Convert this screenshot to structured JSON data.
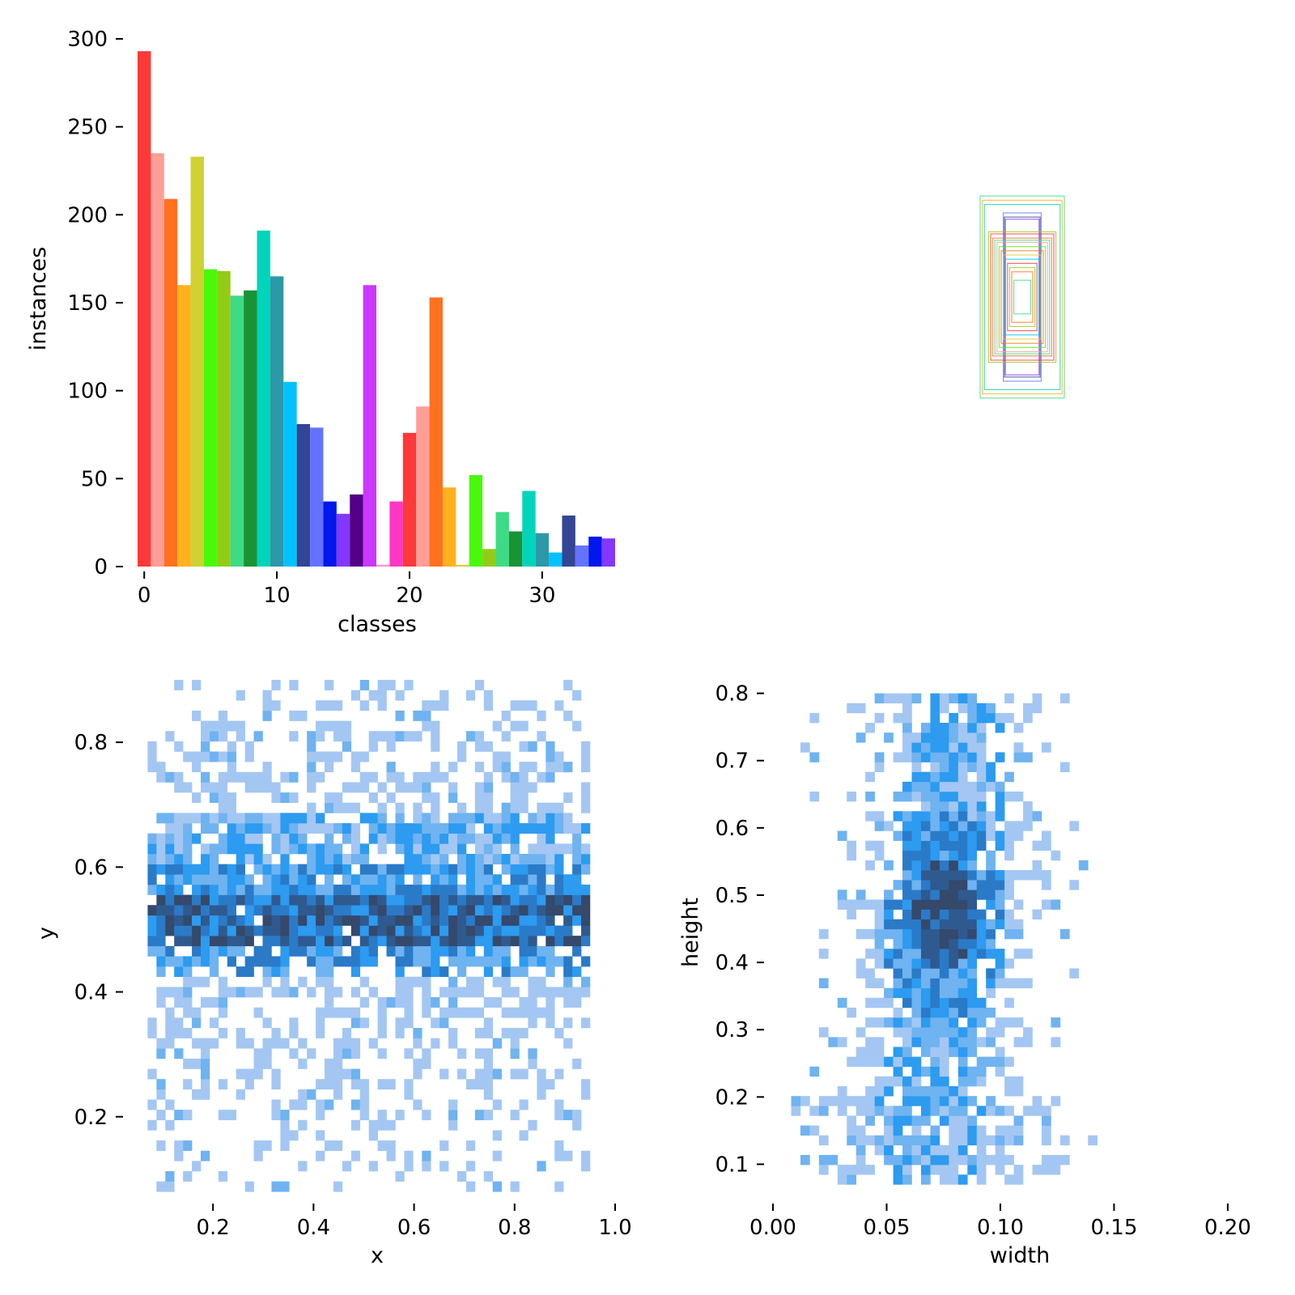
{
  "chart_data": [
    {
      "type": "bar",
      "xlabel": "classes",
      "ylabel": "instances",
      "ylim": [
        0,
        300
      ],
      "xlim": [
        -0.5,
        35.5
      ],
      "x_ticks": [
        0,
        10,
        20,
        30
      ],
      "y_ticks": [
        0,
        50,
        100,
        150,
        200,
        250,
        300
      ],
      "categories": [
        0,
        1,
        2,
        3,
        4,
        5,
        6,
        7,
        8,
        9,
        10,
        11,
        12,
        13,
        14,
        15,
        16,
        17,
        18,
        19,
        20,
        21,
        22,
        23,
        24,
        25,
        26,
        27,
        28,
        29,
        30,
        31,
        32,
        33,
        34,
        35
      ],
      "values": [
        293,
        235,
        209,
        160,
        233,
        169,
        168,
        154,
        157,
        191,
        165,
        105,
        81,
        79,
        37,
        30,
        41,
        160,
        1,
        37,
        76,
        91,
        153,
        45,
        1,
        52,
        10,
        31,
        20,
        43,
        19,
        8,
        29,
        12,
        17,
        16
      ],
      "colors": [
        "#FF3838",
        "#FF9D97",
        "#FF701F",
        "#FFB21D",
        "#CFD231",
        "#48F90A",
        "#92CC17",
        "#3DDB86",
        "#1A9334",
        "#00D4BB",
        "#2C99A8",
        "#00C2FF",
        "#344593",
        "#6473FF",
        "#0018EC",
        "#8438FF",
        "#520085",
        "#CB38FF",
        "#FF95C8",
        "#FF37C7",
        "#FF3838",
        "#FF9D97",
        "#FF701F",
        "#FFB21D",
        "#CFD231",
        "#48F90A",
        "#92CC17",
        "#3DDB86",
        "#1A9334",
        "#00D4BB",
        "#2C99A8",
        "#00C2FF",
        "#344593",
        "#6473FF",
        "#0018EC",
        "#8438FF"
      ]
    },
    {
      "type": "boxes",
      "description_of_marks": "overlaid box outlines centered at the same point",
      "box_sizes": [
        {
          "w": 0.2,
          "h": 0.48,
          "color": "#3DDB86"
        },
        {
          "w": 0.19,
          "h": 0.46,
          "color": "#FFB21D"
        },
        {
          "w": 0.18,
          "h": 0.44,
          "color": "#00D4BB"
        },
        {
          "w": 0.09,
          "h": 0.4,
          "color": "#6473FF"
        },
        {
          "w": 0.085,
          "h": 0.38,
          "color": "#344593"
        },
        {
          "w": 0.08,
          "h": 0.37,
          "color": "#8438FF"
        },
        {
          "w": 0.16,
          "h": 0.31,
          "color": "#92CC17"
        },
        {
          "w": 0.15,
          "h": 0.3,
          "color": "#FF3838"
        },
        {
          "w": 0.14,
          "h": 0.28,
          "color": "#FF701F"
        },
        {
          "w": 0.13,
          "h": 0.27,
          "color": "#3DDB86"
        },
        {
          "w": 0.12,
          "h": 0.26,
          "color": "#FF9D97"
        },
        {
          "w": 0.11,
          "h": 0.24,
          "color": "#48F90A"
        },
        {
          "w": 0.1,
          "h": 0.22,
          "color": "#FF701F"
        },
        {
          "w": 0.09,
          "h": 0.2,
          "color": "#CFD231"
        },
        {
          "w": 0.08,
          "h": 0.18,
          "color": "#00C2FF"
        },
        {
          "w": 0.07,
          "h": 0.16,
          "color": "#FF3838"
        },
        {
          "w": 0.06,
          "h": 0.14,
          "color": "#92CC17"
        },
        {
          "w": 0.05,
          "h": 0.12,
          "color": "#FF701F"
        },
        {
          "w": 0.04,
          "h": 0.08,
          "color": "#3DDB86"
        }
      ]
    },
    {
      "type": "heatmap",
      "xlabel": "x",
      "ylabel": "y",
      "xlim": [
        0.05,
        1.0
      ],
      "ylim": [
        0.07,
        0.9
      ],
      "x_ticks": [
        0.2,
        0.4,
        0.6,
        0.8,
        1.0
      ],
      "y_ticks": [
        0.2,
        0.4,
        0.6,
        0.8
      ],
      "x_range": [
        0.07,
        0.95
      ],
      "y_range": [
        0.08,
        0.9
      ],
      "bins": 50,
      "core_y": 0.52,
      "band": [
        0.44,
        0.68
      ],
      "color_scale": [
        "#A3C7F2",
        "#6FB3F0",
        "#2C9BF0",
        "#2A7AC8",
        "#2E5A8F",
        "#34496B"
      ]
    },
    {
      "type": "heatmap",
      "xlabel": "width",
      "ylabel": "height",
      "xlim": [
        0.0,
        0.21
      ],
      "ylim": [
        0.05,
        0.82
      ],
      "x_ticks": [
        0.0,
        0.05,
        0.1,
        0.15,
        0.2
      ],
      "x_tick_labels": [
        "0.00",
        "0.05",
        "0.10",
        "0.15",
        "0.20"
      ],
      "y_ticks": [
        0.1,
        0.2,
        0.3,
        0.4,
        0.5,
        0.6,
        0.7,
        0.8
      ],
      "x_range": [
        0.008,
        0.212
      ],
      "y_range": [
        0.07,
        0.8
      ],
      "bins": 50,
      "core": {
        "width": 0.075,
        "height": 0.47
      },
      "color_scale": [
        "#A3C7F2",
        "#6FB3F0",
        "#2C9BF0",
        "#2A7AC8",
        "#2E5A8F",
        "#34496B"
      ]
    }
  ]
}
